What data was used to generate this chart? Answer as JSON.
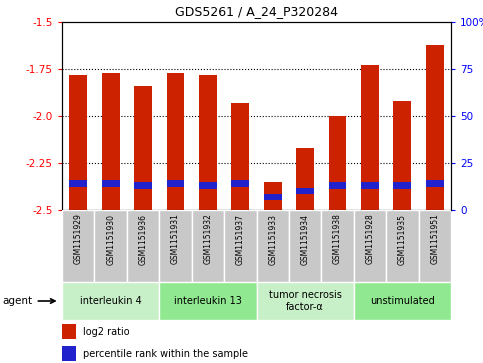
{
  "title": "GDS5261 / A_24_P320284",
  "samples": [
    "GSM1151929",
    "GSM1151930",
    "GSM1151936",
    "GSM1151931",
    "GSM1151932",
    "GSM1151937",
    "GSM1151933",
    "GSM1151934",
    "GSM1151938",
    "GSM1151928",
    "GSM1151935",
    "GSM1151951"
  ],
  "log2_ratio": [
    -1.78,
    -1.77,
    -1.84,
    -1.77,
    -1.78,
    -1.93,
    -2.35,
    -2.17,
    -2.0,
    -1.73,
    -1.92,
    -1.62
  ],
  "percentile_rank": [
    14,
    14,
    13,
    14,
    13,
    14,
    7,
    10,
    13,
    13,
    13,
    14
  ],
  "agents": [
    {
      "label": "interleukin 4",
      "start": 0,
      "end": 3,
      "color": "#c8f0c8"
    },
    {
      "label": "interleukin 13",
      "start": 3,
      "end": 6,
      "color": "#90e890"
    },
    {
      "label": "tumor necrosis\nfactor-α",
      "start": 6,
      "end": 9,
      "color": "#c8f0c8"
    },
    {
      "label": "unstimulated",
      "start": 9,
      "end": 12,
      "color": "#90e890"
    }
  ],
  "ylim_left": [
    -2.5,
    -1.5
  ],
  "ylim_right": [
    0,
    100
  ],
  "yticks_left": [
    -2.5,
    -2.25,
    -2.0,
    -1.75,
    -1.5
  ],
  "yticks_right": [
    0,
    25,
    50,
    75,
    100
  ],
  "bar_color": "#cc2200",
  "percentile_color": "#2222cc",
  "background_plot": "#ffffff",
  "background_xlabels": "#c8c8c8",
  "agent_label": "agent",
  "legend_log2": "log2 ratio",
  "legend_pct": "percentile rank within the sample",
  "bar_width": 0.55
}
